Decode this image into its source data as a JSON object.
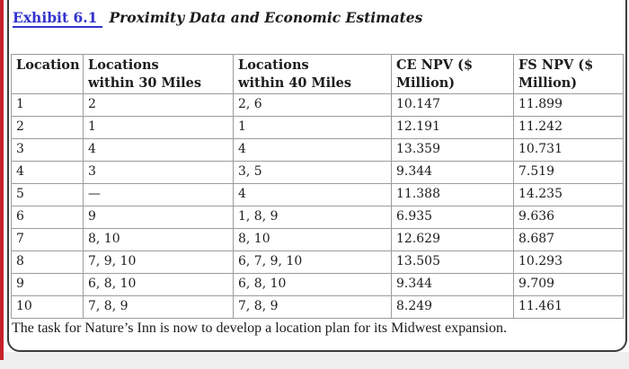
{
  "colors": {
    "red_strip": "#c4232a",
    "link_blue": "#3333cc",
    "panel_border": "#3d3d3d",
    "table_border": "#9c9c9c"
  },
  "title": {
    "exhibit_label": "Exhibit 6.1",
    "text": "Proximity Data and Economic Estimates"
  },
  "table": {
    "headers": [
      "Location",
      "Locations within 30 Miles",
      "Locations within 40 Miles",
      "CE NPV ($ Million)",
      "FS NPV ($ Million)"
    ],
    "rows": [
      {
        "cells": [
          "1",
          "2",
          "2, 6",
          "10.147",
          "11.899"
        ]
      },
      {
        "cells": [
          "2",
          "1",
          "1",
          "12.191",
          "11.242"
        ]
      },
      {
        "cells": [
          "3",
          "4",
          "4",
          "13.359",
          "10.731"
        ]
      },
      {
        "cells": [
          "4",
          "3",
          "3, 5",
          "9.344",
          "7.519"
        ]
      },
      {
        "cells": [
          "5",
          "—",
          "4",
          "11.388",
          "14.235"
        ]
      },
      {
        "cells": [
          "6",
          "9",
          "1, 8, 9",
          "6.935",
          "9.636"
        ]
      },
      {
        "cells": [
          "7",
          "8, 10",
          "8, 10",
          "12.629",
          "8.687"
        ]
      },
      {
        "cells": [
          "8",
          "7, 9, 10",
          "6, 7, 9, 10",
          "13.505",
          "10.293"
        ]
      },
      {
        "cells": [
          "9",
          "6, 8, 10",
          "6, 8, 10",
          "9.344",
          "9.709"
        ]
      },
      {
        "cells": [
          "10",
          "7, 8, 9",
          "7, 8, 9",
          "8.249",
          "11.461"
        ]
      }
    ]
  },
  "footer": {
    "text": "The task for Nature’s Inn is now to develop a location plan for its Midwest expansion."
  }
}
